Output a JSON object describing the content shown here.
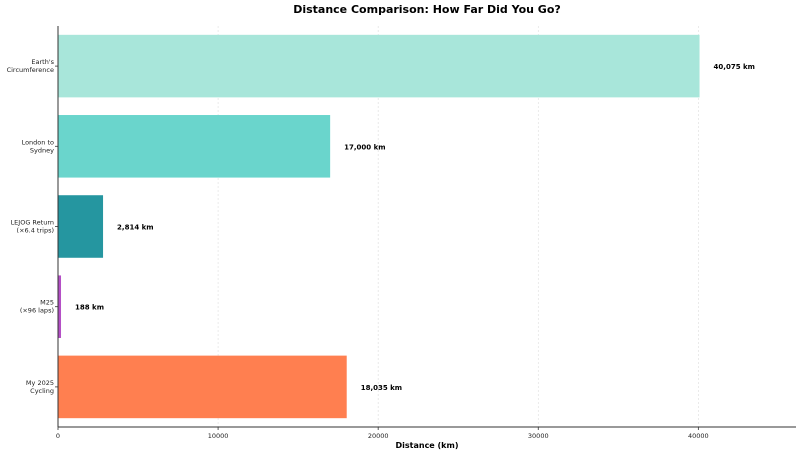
{
  "chart_data": {
    "type": "bar",
    "orientation": "horizontal",
    "title": "Distance Comparison: How Far Did You Go?",
    "xlabel": "Distance (km)",
    "ylabel": "",
    "xlim": [
      0,
      46100
    ],
    "grid": "x, dashed",
    "categories": [
      "Earth's\nCircumference",
      "London to\nSydney",
      "LEJOG Return\n(×6.4 trips)",
      "M25\n(×96 laps)",
      "My 2025\nCycling"
    ],
    "values": [
      40075,
      17000,
      2814,
      188,
      18035
    ],
    "data_labels": [
      "40,075 km",
      "17,000 km",
      "2,814 km",
      "188 km",
      "18,035 km"
    ],
    "colors": [
      "#a8e6da",
      "#6ad5cc",
      "#2596a0",
      "#b44fc6",
      "#ff7f50"
    ],
    "xticks": [
      0,
      10000,
      20000,
      30000,
      40000
    ],
    "xtick_labels": [
      "0",
      "10000",
      "20000",
      "30000",
      "40000"
    ]
  }
}
